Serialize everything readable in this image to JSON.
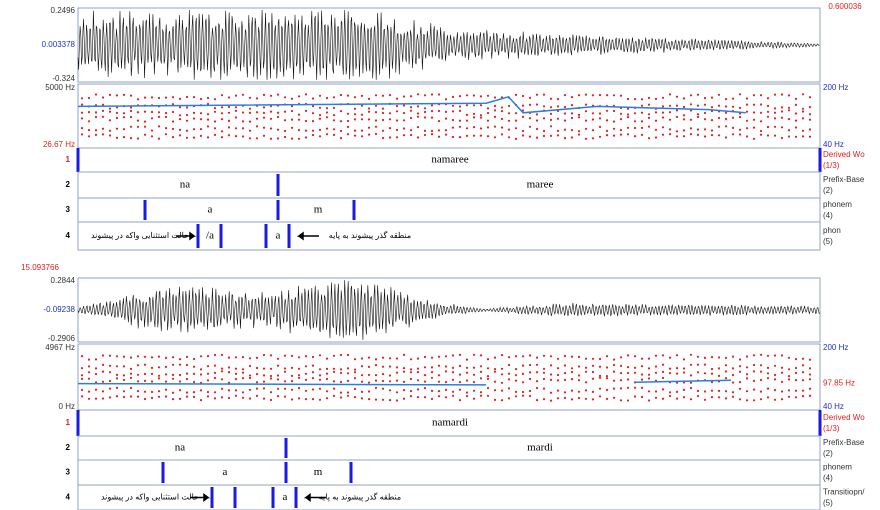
{
  "panels": [
    {
      "time_label": "0.600036",
      "wave_max": "0.2496",
      "wave_mid": "0.003378",
      "wave_min": "-0.324",
      "freq_max": "5000 Hz",
      "freq_min": "26.67 Hz",
      "pitch_max": "200 Hz",
      "pitch_min": "40 Hz",
      "tiers": [
        {
          "number": "1",
          "name": "Derived Wo",
          "count": "(1/3)",
          "labels": [
            "namaree"
          ]
        },
        {
          "number": "2",
          "name": "Prefix-Base",
          "count": "(2)",
          "labels": [
            "na",
            "maree"
          ]
        },
        {
          "number": "3",
          "name": "phonem",
          "count": "(4)",
          "labels": [
            "a",
            "m"
          ]
        },
        {
          "number": "4",
          "name": "phon",
          "count": "(5)",
          "labels": [
            "حالت استثنایی واکه در پیشوند",
            "/a",
            "a",
            "منطقه گذر پیشوند به پایه"
          ]
        }
      ]
    },
    {
      "time_label": "15.093766",
      "wave_max": "0.2844",
      "wave_mid": "-0.09238",
      "wave_min": "-0.2906",
      "freq_max": "4967 Hz",
      "freq_min": "0 Hz",
      "pitch_max": "200 Hz",
      "pitch_mid": "97.85 Hz",
      "pitch_min": "40 Hz",
      "tiers": [
        {
          "number": "1",
          "name": "Derived Wo",
          "count": "(1/3)",
          "labels": [
            "namardi"
          ]
        },
        {
          "number": "2",
          "name": "Prefix-Base",
          "count": "(2)",
          "labels": [
            "na",
            "mardi"
          ]
        },
        {
          "number": "3",
          "name": "phonem",
          "count": "(4)",
          "labels": [
            "a",
            "m"
          ]
        },
        {
          "number": "4",
          "name": "Transitiopn/",
          "count": "(5)",
          "labels": [
            "حالت استثنایی واکه در پیشوند",
            "a",
            "منطقه گذر پیشوند به پایه"
          ]
        }
      ]
    }
  ]
}
